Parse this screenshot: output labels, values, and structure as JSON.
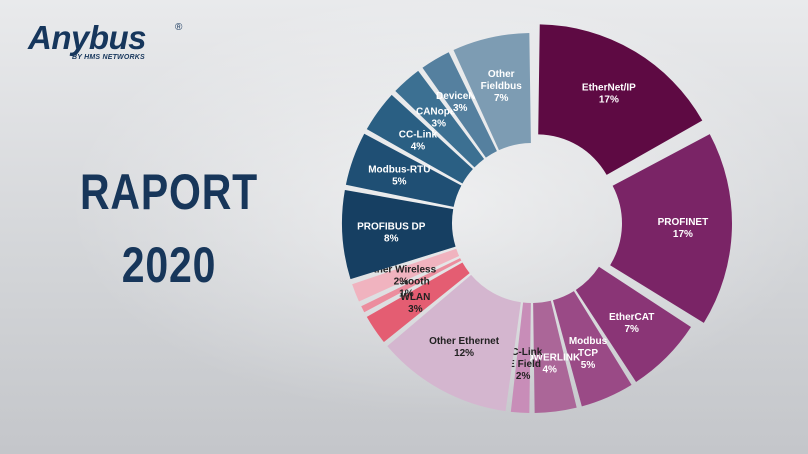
{
  "logo": {
    "name": "Anybus",
    "registered": "®",
    "byline": "BY HMS NETWORKS"
  },
  "title": {
    "line1": "RAPORT",
    "line2": "2020"
  },
  "chart_data": {
    "type": "pie",
    "variant": "donut",
    "categories": [
      "EtherNet/IP",
      "PROFINET",
      "EtherCAT",
      "Modbus TCP",
      "POWERLINK",
      "CC-Link IE Field",
      "Other Ethernet",
      "WLAN",
      "Bluetooth",
      "Other Wireless",
      "PROFIBUS DP",
      "Modbus-RTU",
      "CC-Link",
      "CANopen",
      "DeviceNet",
      "Other Fieldbus"
    ],
    "values": [
      17,
      17,
      7,
      5,
      4,
      2,
      12,
      3,
      1,
      2,
      8,
      5,
      4,
      3,
      3,
      7
    ],
    "value_labels": [
      "17%",
      "17%",
      "7%",
      "5%",
      "4%",
      "2%",
      "12%",
      "3%",
      "1%",
      "2%",
      "8%",
      "5%",
      "4%",
      "3%",
      "3%",
      "7%"
    ],
    "label_lines": [
      [
        "EtherNet/IP",
        "17%"
      ],
      [
        "PROFINET",
        "17%"
      ],
      [
        "EtherCAT",
        "7%"
      ],
      [
        "Modbus",
        "TCP",
        "5%"
      ],
      [
        "POWERLINK",
        "4%"
      ],
      [
        "CC-Link",
        "IE Field",
        "2%"
      ],
      [
        "Other Ethernet",
        "12%"
      ],
      [
        "WLAN",
        "3%"
      ],
      [
        "Bluetooth",
        "1%"
      ],
      [
        "Other Wireless",
        "2%"
      ],
      [
        "PROFIBUS DP",
        "8%"
      ],
      [
        "Modbus-RTU",
        "5%"
      ],
      [
        "CC-Link",
        "4%"
      ],
      [
        "CANopen",
        "3%"
      ],
      [
        "DeviceNet",
        "3%"
      ],
      [
        "Other",
        "Fieldbus",
        "7%"
      ]
    ],
    "groups": [
      "Industrial Ethernet",
      "Industrial Ethernet",
      "Industrial Ethernet",
      "Industrial Ethernet",
      "Industrial Ethernet",
      "Industrial Ethernet",
      "Industrial Ethernet",
      "Wireless",
      "Wireless",
      "Wireless",
      "Fieldbus",
      "Fieldbus",
      "Fieldbus",
      "Fieldbus",
      "Fieldbus",
      "Fieldbus"
    ],
    "colors": [
      "#5e0a43",
      "#7a2466",
      "#8a3576",
      "#9a4a86",
      "#ab6698",
      "#c88db8",
      "#d4b6cf",
      "#e45d72",
      "#ec8d9e",
      "#f0b3bf",
      "#163f62",
      "#1f4f74",
      "#2a5f83",
      "#3c7092",
      "#55809f",
      "#7d9cb3"
    ],
    "label_colors": [
      "#ffffff",
      "#ffffff",
      "#ffffff",
      "#ffffff",
      "#ffffff",
      "#222222",
      "#222222",
      "#222222",
      "#222222",
      "#222222",
      "#ffffff",
      "#ffffff",
      "#ffffff",
      "#ffffff",
      "#ffffff",
      "#ffffff"
    ],
    "start": "top",
    "direction": "clockwise",
    "legend": "none"
  }
}
